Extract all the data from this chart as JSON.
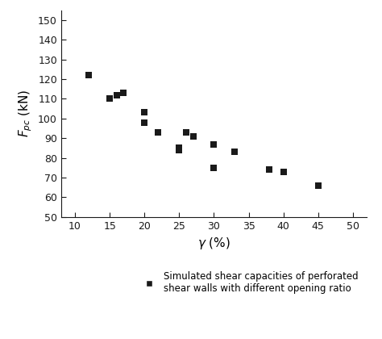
{
  "x": [
    12,
    15,
    16,
    17,
    20,
    20,
    22,
    25,
    25,
    26,
    27,
    30,
    30,
    33,
    38,
    40,
    45
  ],
  "y": [
    122,
    110,
    112,
    113,
    98,
    103,
    93,
    85,
    84,
    93,
    91,
    75,
    87,
    83,
    74,
    73,
    66
  ],
  "marker": "s",
  "marker_color": "#1a1a1a",
  "marker_size": 6,
  "xlim": [
    8,
    52
  ],
  "ylim": [
    50,
    155
  ],
  "xticks": [
    10,
    15,
    20,
    25,
    30,
    35,
    40,
    45,
    50
  ],
  "yticks": [
    50,
    60,
    70,
    80,
    90,
    100,
    110,
    120,
    130,
    140,
    150
  ],
  "xlabel": "$\\gamma$ (%)",
  "ylabel": "$F_{pc}$ (kN)",
  "legend_label": "Simulated shear capacities of perforated\nshear walls with different opening ratio",
  "background_color": "#ffffff"
}
